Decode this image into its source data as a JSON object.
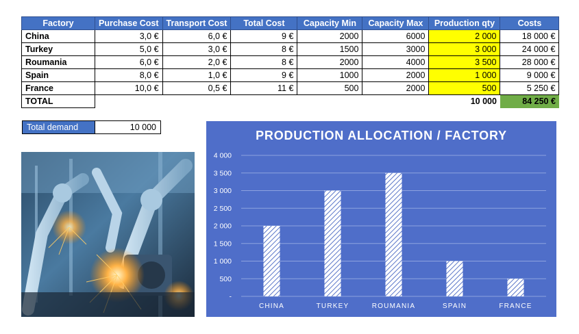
{
  "table": {
    "headers": [
      "Factory",
      "Purchase Cost",
      "Transport Cost",
      "Total Cost",
      "Capacity Min",
      "Capacity Max",
      "Production qty",
      "Costs"
    ],
    "rows": [
      {
        "factory": "China",
        "purchase": "3,0 €",
        "transport": "6,0 €",
        "total": "9 €",
        "cap_min": "2000",
        "cap_max": "6000",
        "qty": "2 000",
        "costs": "18 000 €"
      },
      {
        "factory": "Turkey",
        "purchase": "5,0 €",
        "transport": "3,0 €",
        "total": "8 €",
        "cap_min": "1500",
        "cap_max": "3000",
        "qty": "3 000",
        "costs": "24 000 €"
      },
      {
        "factory": "Roumania",
        "purchase": "6,0 €",
        "transport": "2,0 €",
        "total": "8 €",
        "cap_min": "2000",
        "cap_max": "4000",
        "qty": "3 500",
        "costs": "28 000 €"
      },
      {
        "factory": "Spain",
        "purchase": "8,0 €",
        "transport": "1,0 €",
        "total": "9 €",
        "cap_min": "1000",
        "cap_max": "2000",
        "qty": "1 000",
        "costs": "9 000 €"
      },
      {
        "factory": "France",
        "purchase": "10,0 €",
        "transport": "0,5 €",
        "total": "11 €",
        "cap_min": "500",
        "cap_max": "2000",
        "qty": "500",
        "costs": "5 250 €"
      }
    ],
    "total_label": "TOTAL",
    "total_qty": "10 000",
    "total_costs": "84 250 €"
  },
  "demand": {
    "label": "Total demand",
    "value": "10 000"
  },
  "colors": {
    "header_blue": "#4472c4",
    "highlight_yellow": "#ffff00",
    "total_green": "#70ad47",
    "chart_background": "#4f6ec9"
  },
  "photo": {
    "icon": "industrial-robot-welding-photo"
  },
  "chart_data": {
    "type": "bar",
    "title": "PRODUCTION ALLOCATION / FACTORY",
    "categories": [
      "CHINA",
      "TURKEY",
      "ROUMANIA",
      "SPAIN",
      "FRANCE"
    ],
    "values": [
      2000,
      3000,
      3500,
      1000,
      500
    ],
    "ylim": [
      0,
      4000
    ],
    "yticks": [
      0,
      500,
      1000,
      1500,
      2000,
      2500,
      3000,
      3500,
      4000
    ],
    "ytick_labels": [
      "-",
      "500",
      "1 000",
      "1 500",
      "2 000",
      "2 500",
      "3 000",
      "3 500",
      "4 000"
    ],
    "grid": true,
    "bar_fill": "white diagonal hatch"
  }
}
